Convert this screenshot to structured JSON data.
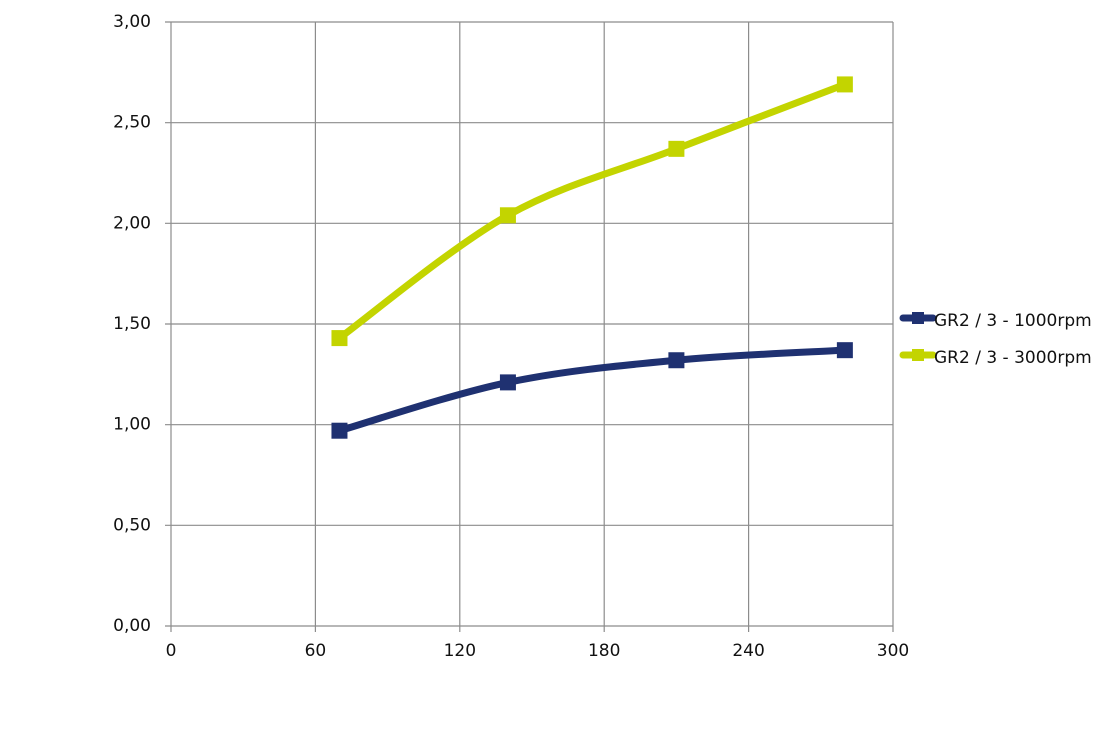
{
  "chart_data": {
    "type": "line",
    "x": [
      70,
      140,
      210,
      280
    ],
    "series": [
      {
        "name": "GR2 / 3 - 1000rpm",
        "color": "#1f3171",
        "values": [
          0.97,
          1.21,
          1.32,
          1.37
        ]
      },
      {
        "name": "GR2 / 3 - 3000rpm",
        "color": "#c3d400",
        "values": [
          1.43,
          2.04,
          2.37,
          2.69
        ]
      }
    ],
    "xlim": [
      0,
      300
    ],
    "xticks": [
      0,
      60,
      120,
      180,
      240,
      300
    ],
    "ylim": [
      0,
      3
    ],
    "yticks": [
      {
        "value": 0,
        "label": "0,00"
      },
      {
        "value": 0.5,
        "label": "0,50"
      },
      {
        "value": 1,
        "label": "1,00"
      },
      {
        "value": 1.5,
        "label": "1,50"
      },
      {
        "value": 2,
        "label": "2,00"
      },
      {
        "value": 2.5,
        "label": "2,50"
      },
      {
        "value": 3,
        "label": "3,00"
      }
    ],
    "grid": true,
    "legend": "right",
    "smooth": true
  }
}
